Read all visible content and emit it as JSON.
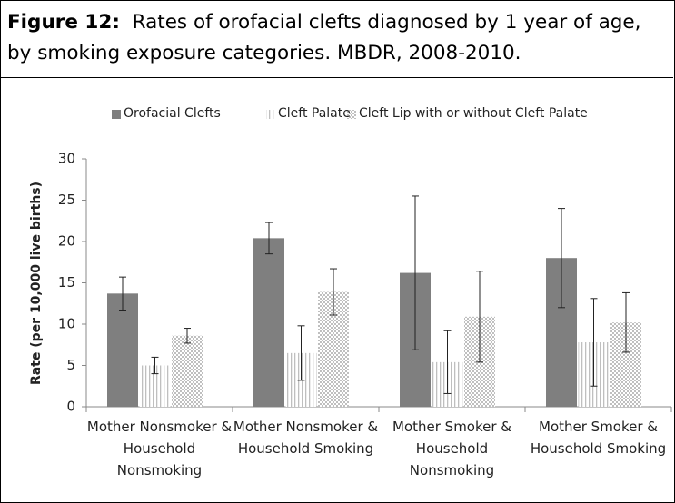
{
  "chart_data": {
    "type": "bar",
    "title_label": "Figure 12:",
    "title": "Rates of orofacial clefts diagnosed by 1 year of age, by smoking exposure categories. MBDR, 2008-2010.",
    "y_label": "Rate (per 10,000 live births)",
    "categories": [
      "Mother Nonsmoker & Household Nonsmoking",
      "Mother Nonsmoker & Household Smoking",
      "Mother Smoker & Household Nonsmoking",
      "Mother Smoker & Household Smoking"
    ],
    "series": [
      {
        "name": "Orofacial Clefts",
        "color": "#7f7f7f",
        "pattern": "solid",
        "values": [
          13.7,
          20.4,
          16.2,
          18.0
        ],
        "errors": [
          2.0,
          1.9,
          9.3,
          6.0
        ]
      },
      {
        "name": "Cleft Palate",
        "color": "#bfbfbf",
        "pattern": "vertical-lines",
        "values": [
          5.0,
          6.5,
          5.4,
          7.8
        ],
        "errors": [
          1.0,
          3.3,
          3.8,
          5.3
        ]
      },
      {
        "name": "Cleft Lip with or without Cleft Palate",
        "color": "#bfbfbf",
        "pattern": "dots",
        "values": [
          8.6,
          13.9,
          10.9,
          10.2
        ],
        "errors": [
          0.9,
          2.8,
          5.5,
          3.6
        ]
      }
    ],
    "ylim": [
      0,
      30
    ],
    "yticks": [
      0,
      5,
      10,
      15,
      20,
      25,
      30
    ],
    "grid": false
  }
}
